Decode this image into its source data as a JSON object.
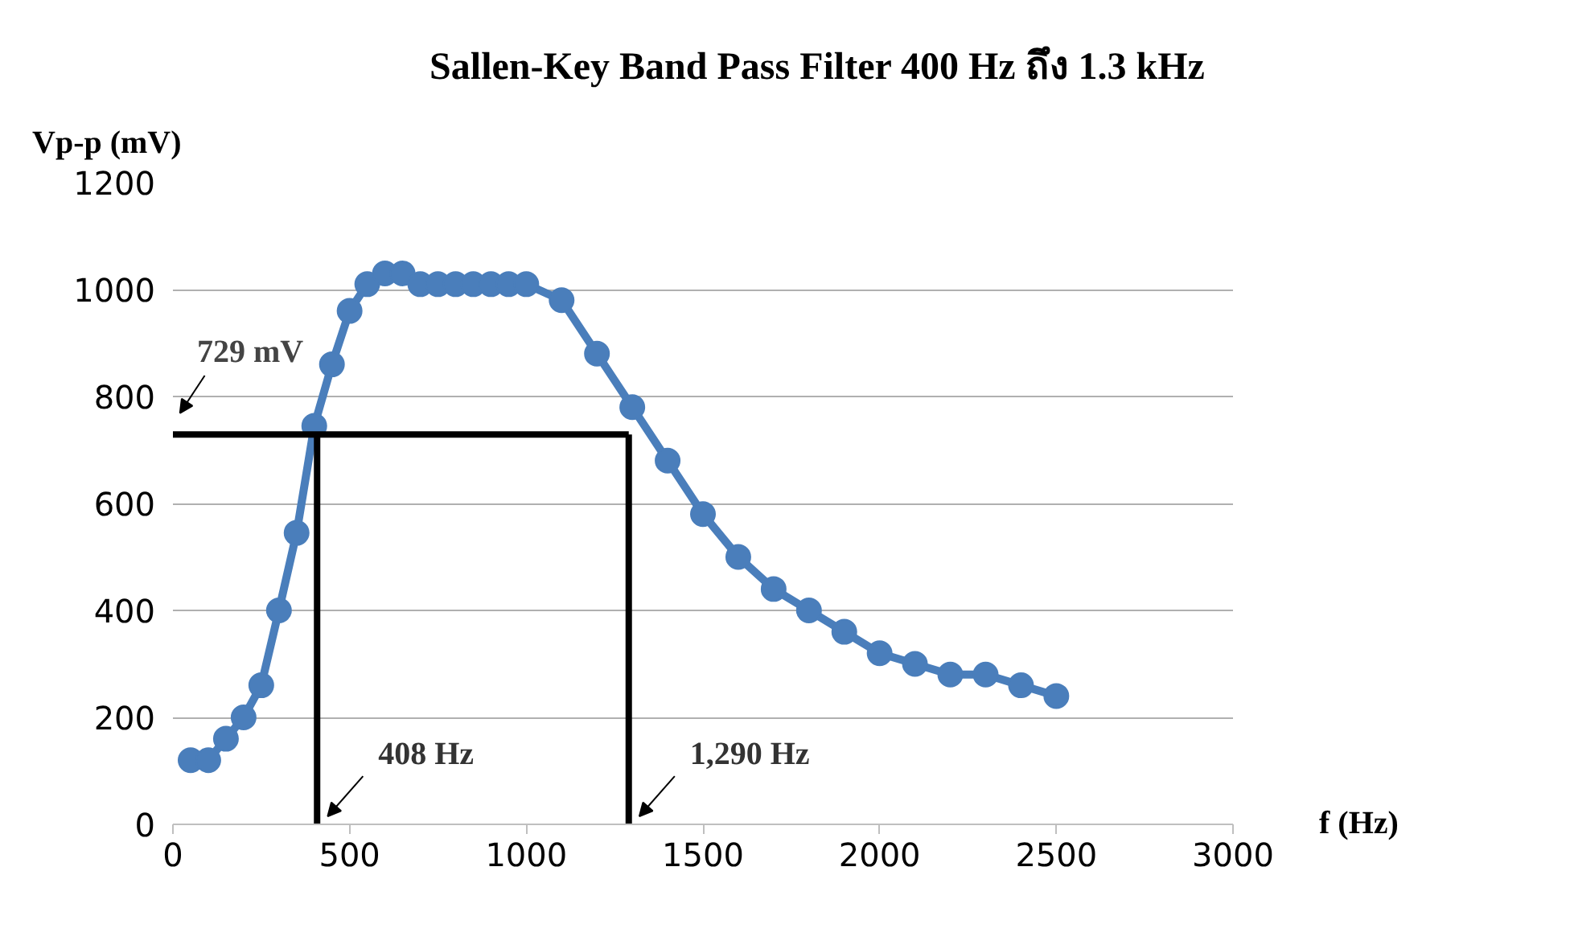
{
  "chart_data": {
    "type": "line",
    "title": "Sallen-Key Band Pass Filter 400  Hz  ถึง  1.3  kHz",
    "xlabel": "f (Hz)",
    "ylabel": "Vp-p (mV)",
    "x": [
      50,
      100,
      150,
      200,
      250,
      300,
      350,
      400,
      450,
      500,
      550,
      600,
      650,
      700,
      750,
      800,
      850,
      900,
      950,
      1000,
      1100,
      1200,
      1300,
      1400,
      1500,
      1600,
      1700,
      1800,
      1900,
      2000,
      2100,
      2200,
      2300,
      2400,
      2500
    ],
    "series": [
      {
        "color": "#4a7ebb",
        "values": [
          120,
          120,
          160,
          200,
          260,
          400,
          545,
          745,
          860,
          960,
          1010,
          1030,
          1030,
          1010,
          1010,
          1010,
          1010,
          1010,
          1010,
          1010,
          980,
          880,
          780,
          680,
          580,
          500,
          440,
          400,
          360,
          320,
          300,
          280,
          280,
          260,
          240
        ]
      }
    ],
    "xlim": [
      0,
      3000
    ],
    "ylim": [
      0,
      1200
    ],
    "xticks": [
      0,
      500,
      1000,
      1500,
      2000,
      2500,
      3000
    ],
    "yticks": [
      0,
      200,
      400,
      600,
      800,
      1000,
      1200
    ],
    "grid": "y",
    "marker": "circle",
    "line_style": "solid",
    "ref_lines": [
      {
        "axis": "y",
        "value": 729,
        "label": "729 mV",
        "color": "#000000"
      },
      {
        "axis": "x",
        "value": 408,
        "label": "408 Hz",
        "color": "#000000"
      },
      {
        "axis": "x",
        "value": 1290,
        "label": "1,290 Hz",
        "color": "#000000"
      }
    ]
  }
}
